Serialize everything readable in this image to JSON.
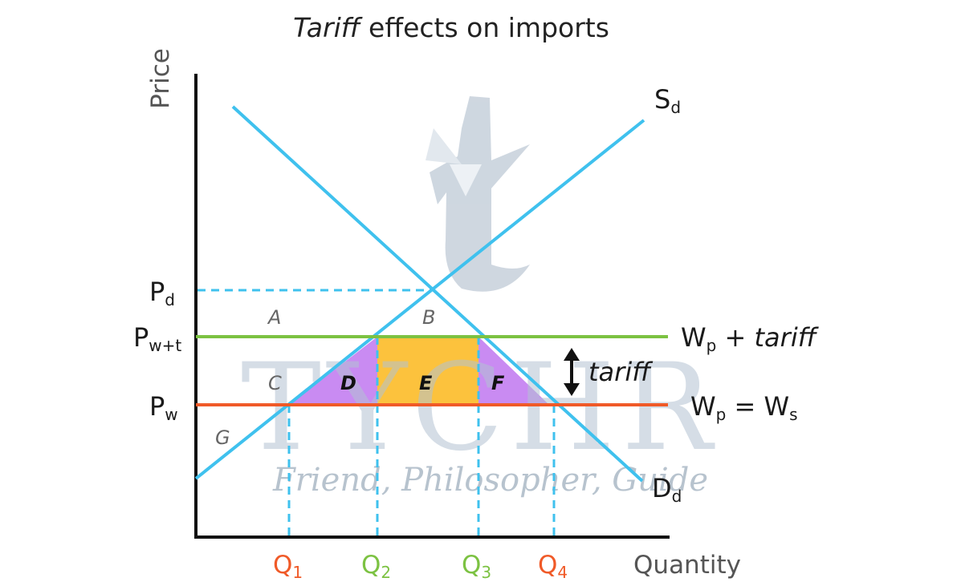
{
  "title": {
    "italic_part": "Tariff",
    "rest": " effects on imports"
  },
  "axes": {
    "y_label": "Price",
    "x_label": "Quantity"
  },
  "price_levels": {
    "pd": {
      "main": "P",
      "sub": "d"
    },
    "pwt": {
      "main": "P",
      "sub": "w+t"
    },
    "pw": {
      "main": "P",
      "sub": "w"
    }
  },
  "quantities": [
    {
      "main": "Q",
      "sub": "1",
      "color": "#f05a28"
    },
    {
      "main": "Q",
      "sub": "2",
      "color": "#7cc242"
    },
    {
      "main": "Q",
      "sub": "3",
      "color": "#7cc242"
    },
    {
      "main": "Q",
      "sub": "4",
      "color": "#f05a28"
    }
  ],
  "curves": {
    "supply": {
      "main": "S",
      "sub": "d",
      "color": "#3fc1ee"
    },
    "demand": {
      "main": "D",
      "sub": "d",
      "color": "#3fc1ee"
    },
    "tariff_line": {
      "text": "W",
      "sub": "p",
      "plus": " + ",
      "italic": "tariff",
      "color": "#7cc242"
    },
    "world_line": {
      "text": "W",
      "sub": "p",
      "eq": " = W",
      "sub2": "s",
      "color": "#f05a28"
    }
  },
  "areas": {
    "A": "A",
    "B": "B",
    "C": "C",
    "D": "D",
    "E": "E",
    "F": "F",
    "G": "G"
  },
  "area_colors": {
    "D": "#c98bf2",
    "E": "#fcc23d",
    "F": "#c98bf2"
  },
  "tariff_arrow_label": "tariff",
  "watermark": {
    "brand": "TYCHR",
    "tagline": "Friend, Philosopher, Guide"
  }
}
